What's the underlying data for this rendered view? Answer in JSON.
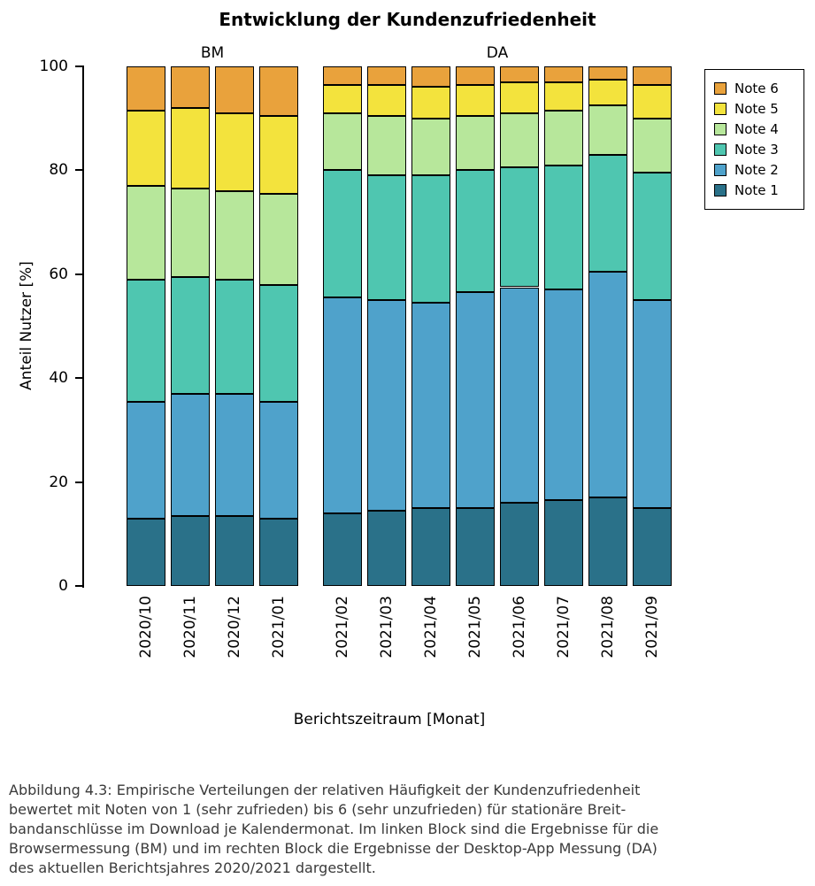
{
  "chart_data": {
    "type": "bar",
    "stacked": true,
    "title": "Entwicklung der Kundenzufriedenheit",
    "xlabel": "Berichtszeitraum [Monat]",
    "ylabel": "Anteil Nutzer [%]",
    "ylim": [
      0,
      100
    ],
    "yticks": [
      0,
      20,
      40,
      60,
      80,
      100
    ],
    "grid": false,
    "legend_position": "top-right",
    "categories": [
      "2020/10",
      "2020/11",
      "2020/12",
      "2021/01",
      "2021/02",
      "2021/03",
      "2021/04",
      "2021/05",
      "2021/06",
      "2021/07",
      "2021/08",
      "2021/09"
    ],
    "groups": [
      {
        "label": "BM",
        "start": 0,
        "count": 4
      },
      {
        "label": "DA",
        "start": 4,
        "count": 8
      }
    ],
    "series": [
      {
        "name": "Note 1",
        "color": "#2A7189",
        "values": [
          13,
          13.5,
          13.5,
          13,
          14,
          14.5,
          15,
          15,
          16,
          16.5,
          17,
          15
        ]
      },
      {
        "name": "Note 2",
        "color": "#4FA2CB",
        "values": [
          22.5,
          23.5,
          23.5,
          22.5,
          41.5,
          40.5,
          39.5,
          41.5,
          41.5,
          40.5,
          43.5,
          40
        ]
      },
      {
        "name": "Note 3",
        "color": "#4FC6B0",
        "values": [
          23.5,
          22.5,
          22,
          22.5,
          24.5,
          24,
          24.5,
          23.5,
          23,
          24,
          22.5,
          24.5
        ]
      },
      {
        "name": "Note 4",
        "color": "#B7E79B",
        "values": [
          18,
          17,
          17,
          17.5,
          11,
          11.5,
          11,
          10.5,
          10.5,
          10.5,
          9.5,
          10.5
        ]
      },
      {
        "name": "Note 5",
        "color": "#F3E33D",
        "values": [
          14.5,
          15.5,
          15,
          15,
          5.5,
          6,
          6,
          6,
          6,
          5.5,
          5,
          6.5
        ]
      },
      {
        "name": "Note 6",
        "color": "#E9A23C",
        "values": [
          8.5,
          8,
          9,
          9.5,
          3.5,
          3.5,
          4,
          3.5,
          3,
          3,
          2.5,
          3.5
        ]
      }
    ],
    "legend_order": [
      "Note 6",
      "Note 5",
      "Note 4",
      "Note 3",
      "Note 2",
      "Note 1"
    ]
  },
  "caption_text": "Abbildung 4.3: Empirische Verteilungen der relativen Häufigkeit der Kundenzufriedenheit\nbewertet mit Noten von 1 (sehr zufrieden) bis 6 (sehr unzufrieden) für stationäre Breit-\nbandanschlüsse im Download je Kalendermonat. Im linken Block sind die Ergebnisse für die\nBrowsermessung (BM) und im rechten Block die Ergebnisse der Desktop-App Messung (DA)\ndes aktuellen Berichtsjahres 2020/2021 dargestellt."
}
